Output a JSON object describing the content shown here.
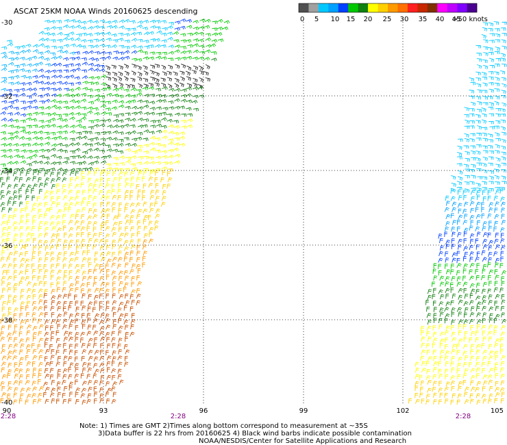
{
  "title": "ASCAT 25KM NOAA Winds 20160625 descending",
  "colorbar": {
    "labels": [
      "0",
      "5",
      "10",
      "15",
      "20",
      "25",
      "30",
      "35",
      "40",
      "45",
      ">50 knots"
    ],
    "colors": [
      "#505050",
      "#a0a0a0",
      "#00c8ff",
      "#00a0ff",
      "#0040ff",
      "#00c800",
      "#108010",
      "#ffff00",
      "#ffd000",
      "#ff9a00",
      "#ff7000",
      "#ff2020",
      "#c82800",
      "#803000",
      "#ff00ff",
      "#c000ff",
      "#8000ff",
      "#4a0090"
    ]
  },
  "axes": {
    "lon_labels": [
      "90",
      "93",
      "96",
      "99",
      "102",
      "105"
    ],
    "lat_labels": [
      "-30",
      "-32",
      "-34",
      "-36",
      "-38",
      "-40"
    ]
  },
  "times": [
    "2:28",
    "2:28",
    "2:28"
  ],
  "notes": {
    "line1": "Note: 1) Times are GMT 2)Times along bottom correspond to measurement at ~35S",
    "line2": "3)Data buffer is 22 hrs from 20160625 4) Black wind barbs indicate possible contamination",
    "line3": "NOAA/NESDIS/Center for Satellite Applications and Research"
  }
}
